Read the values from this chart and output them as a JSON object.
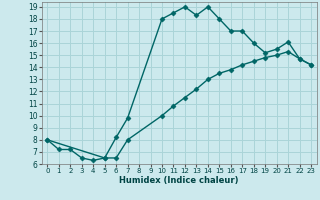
{
  "xlabel": "Humidex (Indice chaleur)",
  "bg_color": "#cce9ed",
  "grid_color": "#aad4d8",
  "line_color": "#006666",
  "xlim": [
    -0.5,
    23.5
  ],
  "ylim": [
    6,
    19.4
  ],
  "xticks": [
    0,
    1,
    2,
    3,
    4,
    5,
    6,
    7,
    8,
    9,
    10,
    11,
    12,
    13,
    14,
    15,
    16,
    17,
    18,
    19,
    20,
    21,
    22,
    23
  ],
  "yticks": [
    6,
    7,
    8,
    9,
    10,
    11,
    12,
    13,
    14,
    15,
    16,
    17,
    18,
    19
  ],
  "upper_curve_x": [
    0,
    1,
    2,
    3,
    4,
    5,
    6,
    7,
    10,
    11,
    12,
    13,
    14,
    15,
    16,
    17,
    18,
    19,
    20,
    21,
    22,
    23
  ],
  "upper_curve_y": [
    8.0,
    7.2,
    7.2,
    6.5,
    6.3,
    6.5,
    8.2,
    9.8,
    18.0,
    18.5,
    19.0,
    18.3,
    19.0,
    18.0,
    17.0,
    17.0,
    16.0,
    15.2,
    15.5,
    16.1,
    14.7,
    14.2
  ],
  "lower_curve_x": [
    0,
    5,
    6,
    7,
    10,
    11,
    12,
    13,
    14,
    15,
    16,
    17,
    18,
    19,
    20,
    21,
    22,
    23
  ],
  "lower_curve_y": [
    8.0,
    6.5,
    6.5,
    8.0,
    10.0,
    10.8,
    11.5,
    12.2,
    13.0,
    13.5,
    13.8,
    14.2,
    14.5,
    14.8,
    15.0,
    15.3,
    14.7,
    14.2
  ],
  "marker": "D",
  "markersize": 2.5,
  "linewidth": 1.0
}
